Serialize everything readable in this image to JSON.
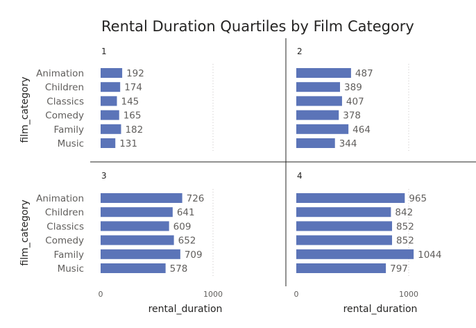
{
  "chart_data": {
    "type": "bar",
    "orientation": "horizontal",
    "title": "Rental Duration Quartiles by Film Category",
    "ylabel": "film_category",
    "xlabel": "rental_duration",
    "xlim": [
      0,
      1000
    ],
    "x_ticks": [
      "0",
      "1000"
    ],
    "grid": true,
    "categories": [
      "Animation",
      "Children",
      "Classics",
      "Comedy",
      "Family",
      "Music"
    ],
    "panels": [
      {
        "label": "1",
        "values": [
          192,
          174,
          145,
          165,
          182,
          131
        ]
      },
      {
        "label": "2",
        "values": [
          487,
          389,
          407,
          378,
          464,
          344
        ]
      },
      {
        "label": "3",
        "values": [
          726,
          641,
          609,
          652,
          709,
          578
        ]
      },
      {
        "label": "4",
        "values": [
          965,
          842,
          852,
          852,
          1044,
          797
        ]
      }
    ],
    "bar_color": "#5b74b8"
  }
}
